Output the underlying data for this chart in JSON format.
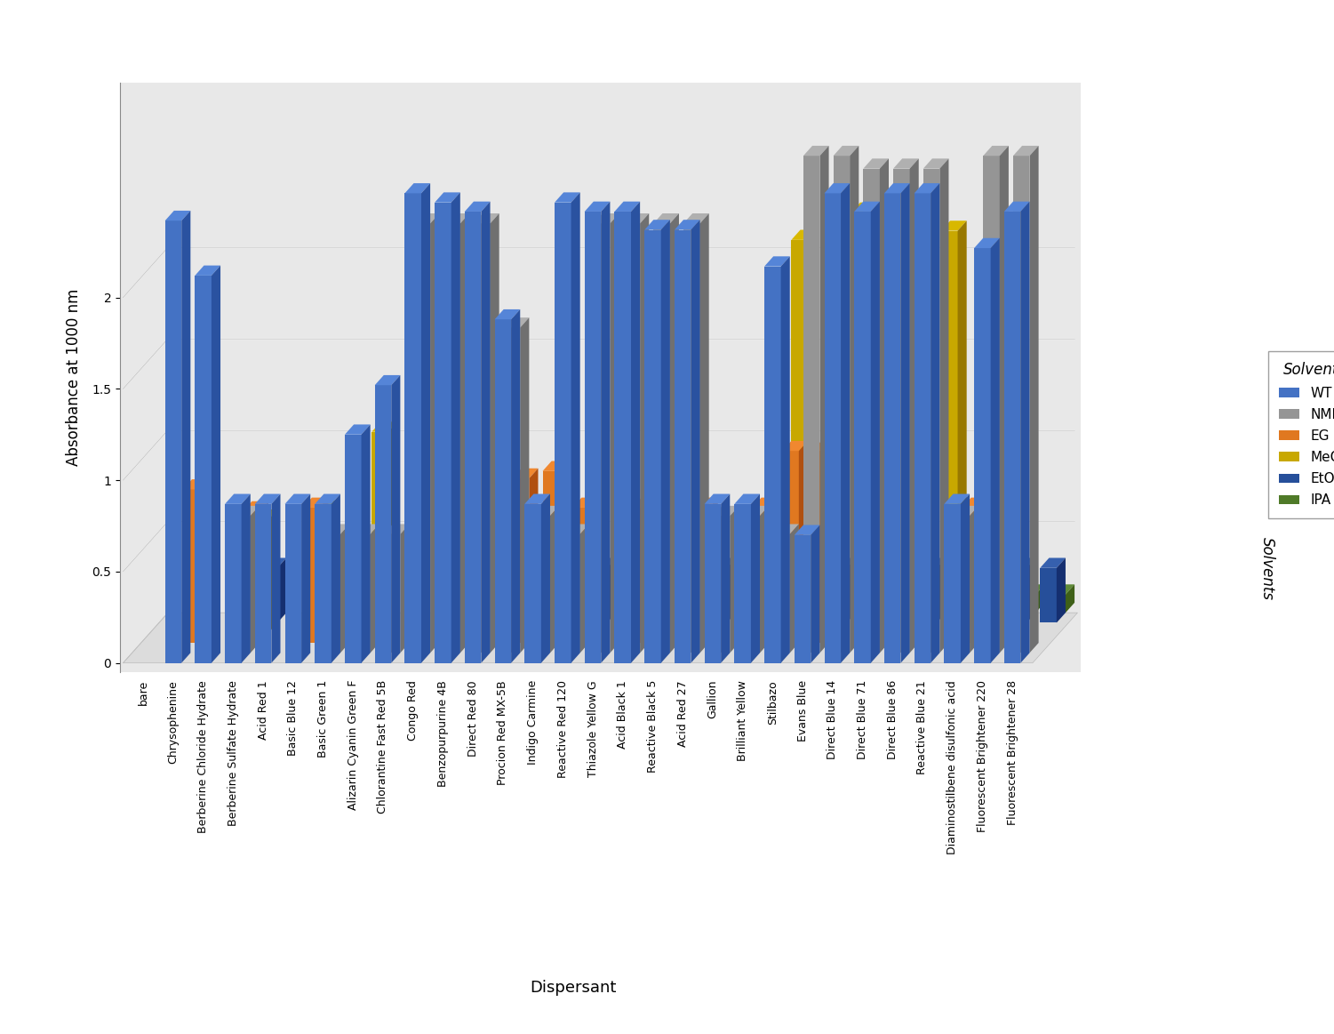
{
  "categories": [
    "bare",
    "Chrysophenine",
    "Berberine Chloride Hydrate",
    "Berberine Sulfate Hydrate",
    "Acid Red 1",
    "Basic Blue 12",
    "Basic Green 1",
    "Alizarin Cyanin Green F",
    "Chlorantine Fast Red 5B",
    "Congo Red",
    "Benzopurpurine 4B",
    "Direct Red 80",
    "Procion Red MX-5B",
    "Indigo Carmine",
    "Reactive Red 120",
    "Thiazole Yellow G",
    "Acid Black 1",
    "Reactive Black 5",
    "Acid Red 27",
    "Gallion",
    "Brilliant Yellow",
    "Stilbazo",
    "Evans Blue",
    "Direct Blue 14",
    "Direct Blue 71",
    "Direct Blue 86",
    "Reactive Blue 21",
    "Diaminostilbene disulfonic acid",
    "Fluorescent Brightener 220",
    "Fluorescent Brightener 28"
  ],
  "series_names": [
    "WT",
    "NMP",
    "EG",
    "MeOH",
    "EtOH",
    "IPA"
  ],
  "series": {
    "WT": [
      0.0,
      2.42,
      2.12,
      0.87,
      0.87,
      0.87,
      0.87,
      1.25,
      1.52,
      2.57,
      2.52,
      2.47,
      1.88,
      0.87,
      2.52,
      2.47,
      2.47,
      2.37,
      2.37,
      0.87,
      0.87,
      2.17,
      0.7,
      2.57,
      2.47,
      2.57,
      2.57,
      0.87,
      2.27,
      2.47
    ],
    "NMP": [
      0.0,
      0.0,
      0.0,
      0.75,
      0.0,
      0.0,
      0.65,
      0.65,
      0.65,
      2.35,
      2.35,
      2.35,
      1.78,
      0.75,
      0.65,
      2.35,
      2.35,
      2.35,
      2.35,
      0.75,
      0.75,
      0.65,
      2.72,
      2.72,
      2.65,
      2.65,
      2.65,
      0.75,
      2.72,
      2.72
    ],
    "EG": [
      0.0,
      0.84,
      0.0,
      0.72,
      0.0,
      0.74,
      0.0,
      0.0,
      0.0,
      0.0,
      0.0,
      0.8,
      0.9,
      0.94,
      0.74,
      0.0,
      0.74,
      0.74,
      0.74,
      0.0,
      0.74,
      1.05,
      1.05,
      0.0,
      0.0,
      0.0,
      0.0,
      0.74,
      0.0,
      0.0
    ],
    "MeOH": [
      0.0,
      0.0,
      0.0,
      0.62,
      0.0,
      0.67,
      0.0,
      1.1,
      0.0,
      1.1,
      1.1,
      0.0,
      0.52,
      0.47,
      0.0,
      0.0,
      0.0,
      0.0,
      0.0,
      0.0,
      0.0,
      2.15,
      0.0,
      2.3,
      0.95,
      2.35,
      2.2,
      0.0,
      0.52,
      0.0
    ],
    "EtOH": [
      0.0,
      0.0,
      0.0,
      0.3,
      0.0,
      0.3,
      0.0,
      0.0,
      0.0,
      0.0,
      0.0,
      0.3,
      0.3,
      0.3,
      0.3,
      0.3,
      0.3,
      0.3,
      0.3,
      0.3,
      0.3,
      0.3,
      0.3,
      0.3,
      0.3,
      0.3,
      0.3,
      0.3,
      0.3,
      0.3
    ],
    "IPA": [
      0.0,
      0.0,
      0.0,
      0.1,
      0.0,
      0.1,
      0.0,
      0.0,
      0.0,
      0.0,
      0.0,
      0.1,
      0.1,
      0.1,
      0.1,
      0.1,
      0.1,
      0.1,
      0.1,
      0.1,
      0.1,
      0.1,
      0.1,
      0.1,
      0.1,
      0.1,
      0.1,
      0.1,
      0.1,
      0.1
    ]
  },
  "colors": {
    "WT": "#4472C4",
    "NMP": "#959595",
    "EG": "#E07820",
    "MeOH": "#C8A800",
    "EtOH": "#264F9A",
    "IPA": "#4F7A28"
  },
  "top_colors": {
    "WT": "#5585D8",
    "NMP": "#B0B0B0",
    "EG": "#F08830",
    "MeOH": "#D8B800",
    "EtOH": "#3660AE",
    "IPA": "#5F8A38"
  },
  "side_colors": {
    "WT": "#2A52A0",
    "NMP": "#707070",
    "EG": "#B05010",
    "MeOH": "#987800",
    "EtOH": "#152F70",
    "IPA": "#3F6018"
  },
  "ylabel": "Absorbance at 1000 nm",
  "xlabel": "Dispersant",
  "legend_title": "Solvents",
  "ylim_max": 2.8,
  "yticks": [
    0,
    0.5,
    1.0,
    1.5,
    2.0
  ],
  "bg_color": "#E8E8E8",
  "grid_color": "#FFFFFF"
}
